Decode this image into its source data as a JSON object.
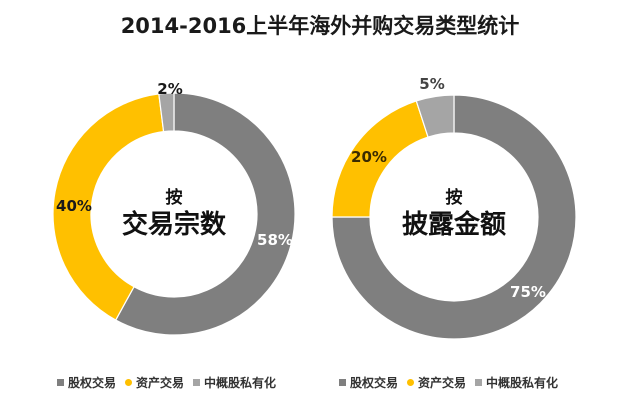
{
  "chart_data": [
    {
      "type": "pie",
      "variant": "donut",
      "title": "2014-2016上半年海外并购交易类型统计",
      "center_label_small": "按",
      "center_label_large": "交易宗数",
      "categories": [
        "股权交易",
        "资产交易",
        "中概股私有化"
      ],
      "values": [
        58,
        40,
        2
      ],
      "value_labels": [
        "58%",
        "40%",
        "2%"
      ],
      "colors": [
        "#7f7f7f",
        "#ffc000",
        "#a5a5a5"
      ],
      "label_colors": [
        "#ffffff",
        "#1a1a1a",
        "#1a1a1a"
      ],
      "legend_position": "bottom"
    },
    {
      "type": "pie",
      "variant": "donut",
      "title": "2014-2016上半年海外并购交易类型统计",
      "center_label_small": "按",
      "center_label_large": "披露金额",
      "categories": [
        "股权交易",
        "资产交易",
        "中概股私有化"
      ],
      "values": [
        75,
        20,
        5
      ],
      "value_labels": [
        "75%",
        "20%",
        "5%"
      ],
      "colors": [
        "#7f7f7f",
        "#ffc000",
        "#a5a5a5"
      ],
      "label_colors": [
        "#ffffff",
        "#3a2a00",
        "#444444"
      ],
      "legend_position": "bottom"
    }
  ],
  "title": "2014-2016上半年海外并购交易类型统计",
  "legend": [
    {
      "label": "股权交易",
      "color": "#7f7f7f",
      "marker": "square"
    },
    {
      "label": "资产交易",
      "color": "#ffc000",
      "marker": "circle"
    },
    {
      "label": "中概股私有化",
      "color": "#a5a5a5",
      "marker": "square"
    }
  ]
}
